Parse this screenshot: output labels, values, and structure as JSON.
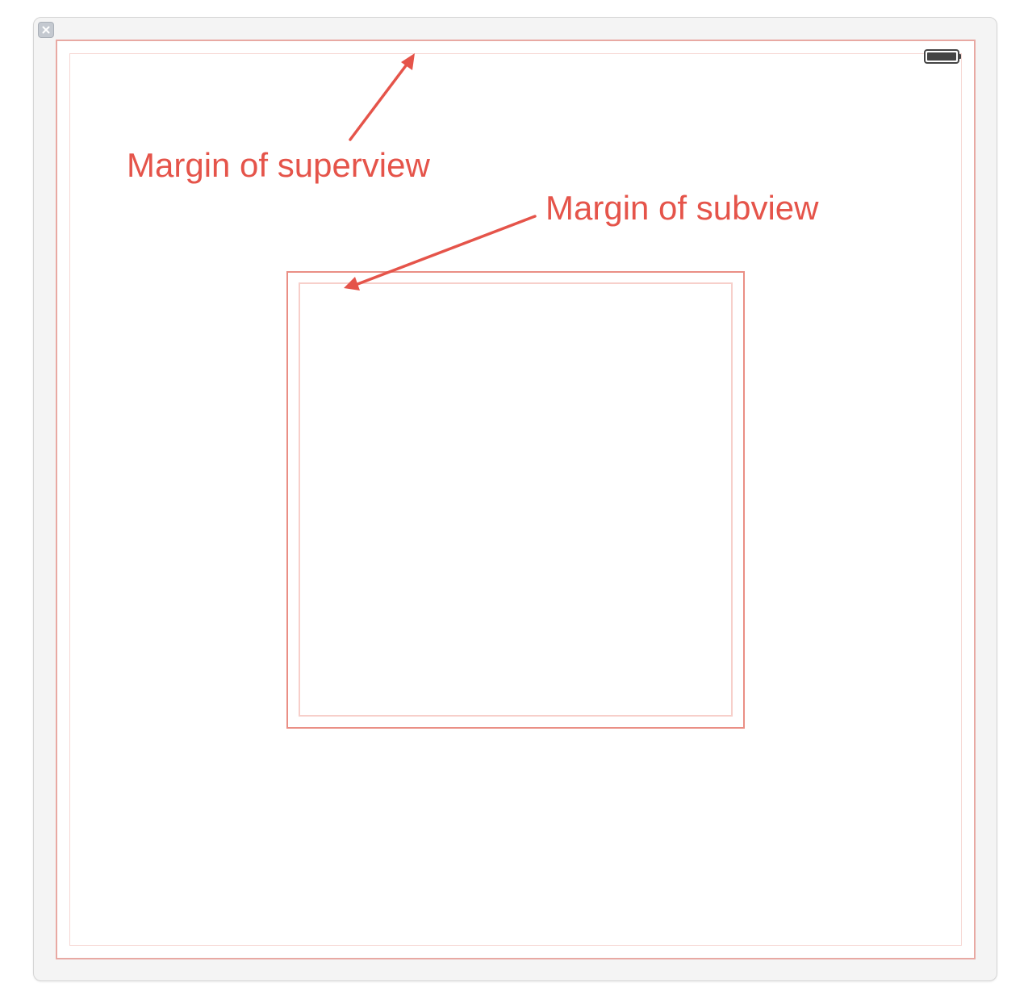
{
  "annotations": {
    "superview_margin_label": "Margin of superview",
    "subview_margin_label": "Margin of subview",
    "color": "#e5544a"
  },
  "window": {
    "close_icon": "close-icon",
    "status_icon": "battery-icon"
  },
  "colors": {
    "frame_background": "#f4f4f4",
    "view_border": "#e8a9a3",
    "margin_guide": "#f6d6d2",
    "subview_border": "#ea8f85"
  }
}
